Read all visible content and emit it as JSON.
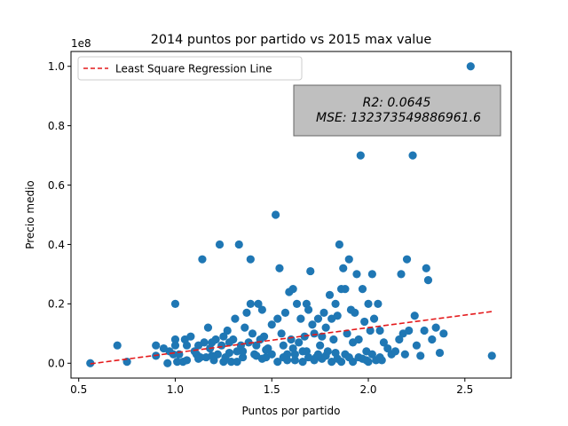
{
  "chart_data": {
    "type": "scatter",
    "title": "2014 puntos por partido vs 2015 max value",
    "xlabel": "Puntos por partido",
    "ylabel": "Precio medio",
    "y_offset_label": "1e8",
    "xlim": [
      0.46,
      2.74
    ],
    "ylim": [
      -5000000,
      105000000
    ],
    "x_ticks": [
      0.5,
      1.0,
      1.5,
      2.0,
      2.5
    ],
    "x_tick_labels": [
      "0.5",
      "1.0",
      "1.5",
      "2.0",
      "2.5"
    ],
    "y_ticks": [
      0,
      20000000,
      40000000,
      60000000,
      80000000,
      100000000
    ],
    "y_tick_labels": [
      "0.0",
      "0.2",
      "0.4",
      "0.6",
      "0.8",
      "1.0"
    ],
    "grid": false,
    "legend": {
      "placement": "upper-left",
      "entries": [
        {
          "label": "Least Square Regression Line",
          "style": "dashed",
          "color": "#e41a1c"
        }
      ]
    },
    "annotation": {
      "placement": "upper-right",
      "lines": [
        "R2: 0.0645",
        "MSE: 132373549886961.6"
      ],
      "background": "#bfbfbf"
    },
    "series": [
      {
        "type": "scatter",
        "color": "#1f77b4",
        "points": [
          [
            0.56,
            0
          ],
          [
            0.7,
            6000000
          ],
          [
            0.75,
            500000
          ],
          [
            0.9,
            6000000
          ],
          [
            0.9,
            2500000
          ],
          [
            0.94,
            5000000
          ],
          [
            0.96,
            0
          ],
          [
            0.97,
            4000000
          ],
          [
            0.99,
            3000000
          ],
          [
            1.0,
            20000000
          ],
          [
            1.0,
            8000000
          ],
          [
            1.0,
            6000000
          ],
          [
            1.01,
            500000
          ],
          [
            1.02,
            3000000
          ],
          [
            1.04,
            500000
          ],
          [
            1.05,
            8000000
          ],
          [
            1.06,
            6000000
          ],
          [
            1.06,
            1000000
          ],
          [
            1.08,
            9000000
          ],
          [
            1.1,
            4000000
          ],
          [
            1.11,
            3000000
          ],
          [
            1.12,
            6000000
          ],
          [
            1.13,
            2000000
          ],
          [
            1.14,
            35000000
          ],
          [
            1.15,
            7000000
          ],
          [
            1.16,
            2000000
          ],
          [
            1.17,
            12000000
          ],
          [
            1.18,
            5000000
          ],
          [
            1.19,
            7000000
          ],
          [
            1.2,
            1000000
          ],
          [
            1.21,
            8000000
          ],
          [
            1.22,
            3000000
          ],
          [
            1.23,
            40000000
          ],
          [
            1.24,
            6000000
          ],
          [
            1.25,
            9000000
          ],
          [
            1.26,
            2000000
          ],
          [
            1.27,
            11000000
          ],
          [
            1.28,
            7000000
          ],
          [
            1.29,
            500000
          ],
          [
            1.3,
            8000000
          ],
          [
            1.31,
            15000000
          ],
          [
            1.32,
            4000000
          ],
          [
            1.33,
            40000000
          ],
          [
            1.34,
            6000000
          ],
          [
            1.35,
            2000000
          ],
          [
            1.36,
            12000000
          ],
          [
            1.37,
            17000000
          ],
          [
            1.38,
            7000000
          ],
          [
            1.39,
            35000000
          ],
          [
            1.39,
            20000000
          ],
          [
            1.4,
            10000000
          ],
          [
            1.41,
            3000000
          ],
          [
            1.42,
            6000000
          ],
          [
            1.43,
            20000000
          ],
          [
            1.44,
            8000000
          ],
          [
            1.45,
            18000000
          ],
          [
            1.46,
            9000000
          ],
          [
            1.47,
            2000000
          ],
          [
            1.48,
            5000000
          ],
          [
            1.5,
            13000000
          ],
          [
            1.52,
            50000000
          ],
          [
            1.53,
            15000000
          ],
          [
            1.54,
            32000000
          ],
          [
            1.55,
            10000000
          ],
          [
            1.56,
            6000000
          ],
          [
            1.57,
            17000000
          ],
          [
            1.58,
            3000000
          ],
          [
            1.59,
            24000000
          ],
          [
            1.6,
            8000000
          ],
          [
            1.61,
            25000000
          ],
          [
            1.62,
            1000000
          ],
          [
            1.63,
            20000000
          ],
          [
            1.64,
            7000000
          ],
          [
            1.65,
            15000000
          ],
          [
            1.66,
            4000000
          ],
          [
            1.67,
            9000000
          ],
          [
            1.68,
            20000000
          ],
          [
            1.69,
            18000000
          ],
          [
            1.7,
            31000000
          ],
          [
            1.71,
            13000000
          ],
          [
            1.72,
            10000000
          ],
          [
            1.73,
            2000000
          ],
          [
            1.74,
            15000000
          ],
          [
            1.75,
            6000000
          ],
          [
            1.76,
            9000000
          ],
          [
            1.77,
            17000000
          ],
          [
            1.78,
            12000000
          ],
          [
            1.79,
            4000000
          ],
          [
            1.8,
            23000000
          ],
          [
            1.81,
            15000000
          ],
          [
            1.82,
            8000000
          ],
          [
            1.83,
            20000000
          ],
          [
            1.84,
            16000000
          ],
          [
            1.85,
            40000000
          ],
          [
            1.86,
            25000000
          ],
          [
            1.87,
            32000000
          ],
          [
            1.88,
            25000000
          ],
          [
            1.89,
            10000000
          ],
          [
            1.9,
            35000000
          ],
          [
            1.91,
            18000000
          ],
          [
            1.92,
            7000000
          ],
          [
            1.93,
            17000000
          ],
          [
            1.94,
            30000000
          ],
          [
            1.95,
            8000000
          ],
          [
            1.96,
            70000000
          ],
          [
            1.97,
            25000000
          ],
          [
            1.98,
            14000000
          ],
          [
            1.99,
            4000000
          ],
          [
            2.0,
            20000000
          ],
          [
            2.01,
            11000000
          ],
          [
            2.02,
            30000000
          ],
          [
            2.03,
            15000000
          ],
          [
            2.04,
            1000000
          ],
          [
            2.05,
            20000000
          ],
          [
            2.06,
            11000000
          ],
          [
            2.07,
            1000000
          ],
          [
            2.08,
            7000000
          ],
          [
            2.1,
            5000000
          ],
          [
            2.12,
            3000000
          ],
          [
            2.14,
            4000000
          ],
          [
            2.16,
            8000000
          ],
          [
            2.17,
            30000000
          ],
          [
            2.18,
            10000000
          ],
          [
            2.19,
            3000000
          ],
          [
            2.2,
            35000000
          ],
          [
            2.21,
            11000000
          ],
          [
            2.23,
            70000000
          ],
          [
            2.24,
            16000000
          ],
          [
            2.25,
            6000000
          ],
          [
            2.27,
            2500000
          ],
          [
            2.29,
            11000000
          ],
          [
            2.3,
            32000000
          ],
          [
            2.31,
            28000000
          ],
          [
            2.33,
            8000000
          ],
          [
            2.35,
            12000000
          ],
          [
            2.37,
            3500000
          ],
          [
            2.39,
            10000000
          ],
          [
            2.53,
            100000000
          ],
          [
            2.64,
            2500000
          ],
          [
            1.32,
            500000
          ],
          [
            1.45,
            1500000
          ],
          [
            1.5,
            3000000
          ],
          [
            1.53,
            500000
          ],
          [
            1.58,
            1000000
          ],
          [
            1.62,
            3000000
          ],
          [
            1.66,
            500000
          ],
          [
            1.69,
            2000000
          ],
          [
            1.72,
            1000000
          ],
          [
            1.76,
            1500000
          ],
          [
            1.78,
            2500000
          ],
          [
            1.81,
            500000
          ],
          [
            1.84,
            1500000
          ],
          [
            1.88,
            3000000
          ],
          [
            1.92,
            500000
          ],
          [
            1.95,
            2000000
          ],
          [
            1.97,
            1500000
          ],
          [
            2.0,
            500000
          ],
          [
            2.02,
            3000000
          ],
          [
            2.06,
            2000000
          ],
          [
            1.25,
            500000
          ],
          [
            1.19,
            2500000
          ],
          [
            1.35,
            4000000
          ],
          [
            1.42,
            2500000
          ],
          [
            1.56,
            2000000
          ],
          [
            1.61,
            5000000
          ],
          [
            1.74,
            3000000
          ],
          [
            1.86,
            500000
          ],
          [
            1.9,
            2000000
          ],
          [
            1.99,
            1000000
          ],
          [
            1.12,
            1500000
          ],
          [
            1.28,
            3500000
          ],
          [
            1.47,
            4500000
          ],
          [
            1.68,
            4000000
          ],
          [
            1.83,
            3500000
          ]
        ]
      },
      {
        "type": "line",
        "name": "Least Square Regression Line",
        "color": "#e41a1c",
        "style": "dashed",
        "x": [
          0.56,
          2.64
        ],
        "y": [
          -200000,
          17400000
        ]
      }
    ]
  }
}
